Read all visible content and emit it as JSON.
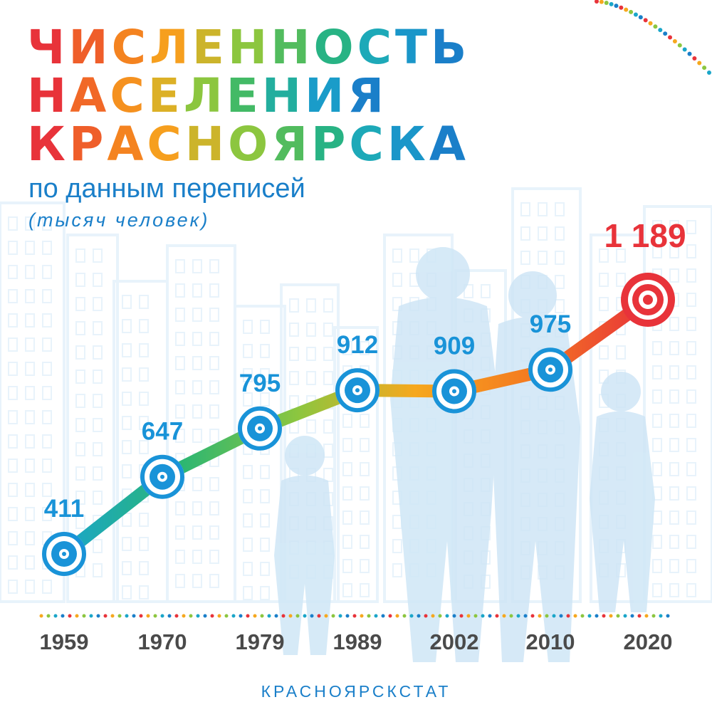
{
  "header": {
    "title_lines": [
      "ЧИСЛЕННОСТЬ",
      "НАСЕЛЕНИЯ",
      "КРАСНОЯРСКА"
    ],
    "subtitle": "по данным переписей",
    "unit_note": "(тысяч человек)"
  },
  "footer": {
    "source": "КРАСНОЯРСКСТАТ"
  },
  "colors": {
    "title_gradient": [
      "#e8333a",
      "#f47a20",
      "#f6a81e",
      "#8cc63f",
      "#2bb673",
      "#1aa6c9",
      "#1a7fc9"
    ],
    "accent_blue": "#1a7fc9",
    "marker_blue": "#1993d8",
    "highlight_red": "#e8333a",
    "line_gradient": [
      "#1aa6c9",
      "#2bb673",
      "#8cc63f",
      "#f6a81e",
      "#f47a20",
      "#e8333a"
    ],
    "background_silhouette": "#d6ebf8",
    "dots": [
      "#e8333a",
      "#f6a81e",
      "#8cc63f",
      "#1aa6c9",
      "#1a7fc9"
    ]
  },
  "chart_data": {
    "type": "line",
    "x": [
      "1959",
      "1970",
      "1979",
      "1989",
      "2002",
      "2010",
      "2020"
    ],
    "values": [
      411,
      647,
      795,
      912,
      909,
      975,
      1189
    ],
    "data_labels": [
      "411",
      "647",
      "795",
      "912",
      "909",
      "975",
      "1 189"
    ],
    "highlight_index": 6,
    "xlabel": "",
    "ylabel": "",
    "grid": false,
    "legend": false,
    "y_axis_shown": false
  }
}
